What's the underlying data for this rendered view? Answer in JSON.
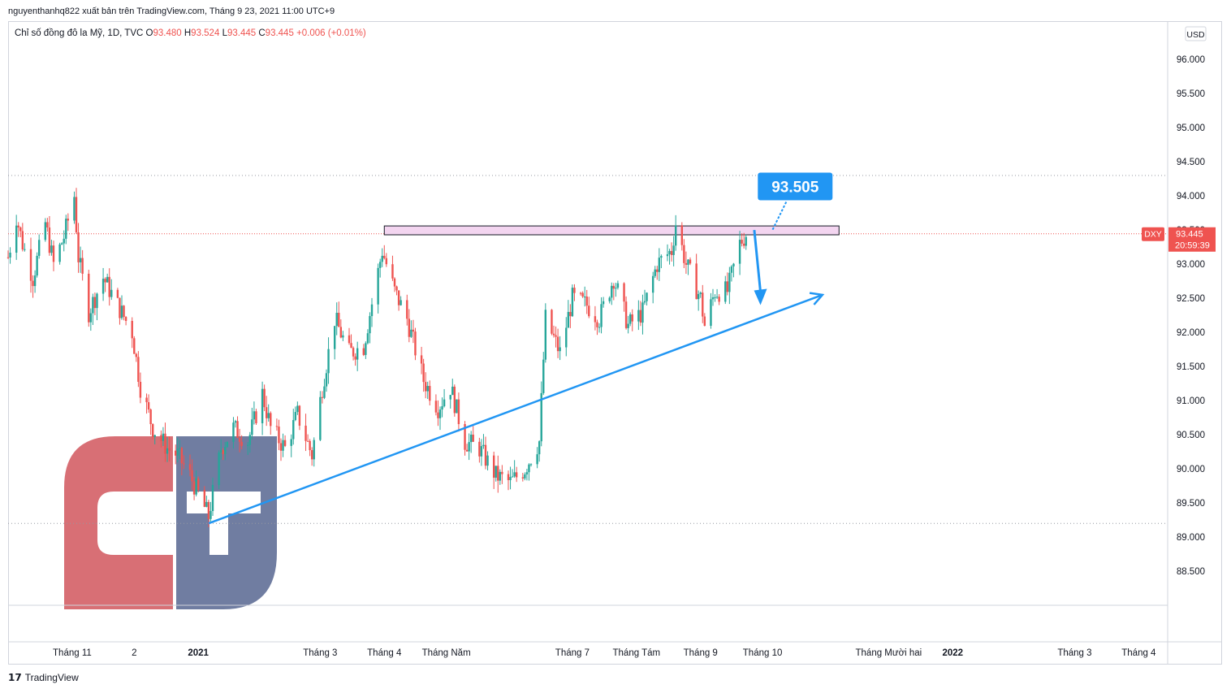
{
  "header": {
    "publisher_line": "nguyenthanhq822 xuất bản trên TradingView.com, Tháng 9 23, 2021 11:00 UTC+9"
  },
  "legend": {
    "instrument": "Chỉ số đồng đô la Mỹ, 1D, TVC",
    "open_label": "O",
    "open": "93.480",
    "high_label": "H",
    "high": "93.524",
    "low_label": "L",
    "low": "93.445",
    "close_label": "C",
    "close": "93.445",
    "change": "+0.006 (+0.01%)"
  },
  "price_axis": {
    "currency_badge": "USD",
    "symbol_badge": "DXY",
    "last_price": "93.445",
    "countdown": "20:59:39"
  },
  "callout": {
    "value": "93.505"
  },
  "footer": {
    "brand": "TradingView"
  },
  "colors": {
    "up": "#26a69a",
    "down": "#ef5350",
    "trendline": "#2196f3",
    "zone_fill": "#f3d5f0",
    "logo_red": "#d5646b",
    "logo_blue": "#65739a"
  },
  "chart_data": {
    "type": "candlestick",
    "symbol": "DXY",
    "timeframe": "1D",
    "ylim": [
      88.0,
      96.55
    ],
    "y_ticks": [
      88.5,
      89.0,
      89.5,
      90.0,
      90.5,
      91.0,
      91.5,
      92.0,
      92.5,
      93.0,
      93.5,
      94.0,
      94.5,
      95.0,
      95.5,
      96.0
    ],
    "y_tick_labels": [
      "88.500",
      "89.000",
      "89.500",
      "90.000",
      "90.500",
      "91.000",
      "91.500",
      "92.000",
      "92.500",
      "93.000",
      "93.500",
      "94.000",
      "94.500",
      "95.000",
      "95.500",
      "96.000"
    ],
    "x_labels": [
      {
        "date": "2020-11-01",
        "text": "Tháng 11",
        "bold": false
      },
      {
        "date": "2020-12-01",
        "text": "2",
        "bold": false
      },
      {
        "date": "2021-01-01",
        "text": "2021",
        "bold": true
      },
      {
        "date": "2021-03-01",
        "text": "Tháng 3",
        "bold": false
      },
      {
        "date": "2021-04-01",
        "text": "Tháng 4",
        "bold": false
      },
      {
        "date": "2021-05-01",
        "text": "Tháng Năm",
        "bold": false
      },
      {
        "date": "2021-07-01",
        "text": "Tháng 7",
        "bold": false
      },
      {
        "date": "2021-08-01",
        "text": "Tháng Tám",
        "bold": false
      },
      {
        "date": "2021-09-01",
        "text": "Tháng 9",
        "bold": false
      },
      {
        "date": "2021-10-01",
        "text": "Tháng 10",
        "bold": false
      },
      {
        "date": "2021-12-01",
        "text": "Tháng Mười hai",
        "bold": false
      },
      {
        "date": "2022-01-01",
        "text": "2022",
        "bold": true
      },
      {
        "date": "2022-03-01",
        "text": "Tháng 3",
        "bold": false
      },
      {
        "date": "2022-04-01",
        "text": "Tháng 4",
        "bold": false
      }
    ],
    "x_range": [
      "2020-10-01",
      "2022-04-15"
    ],
    "close_path": [
      [
        "2020-10-01",
        93.1
      ],
      [
        "2020-10-05",
        93.7
      ],
      [
        "2020-10-08",
        93.3
      ],
      [
        "2020-10-13",
        92.8
      ],
      [
        "2020-10-19",
        93.6
      ],
      [
        "2020-10-23",
        93.0
      ],
      [
        "2020-10-28",
        93.4
      ],
      [
        "2020-11-02",
        94.0
      ],
      [
        "2020-11-04",
        93.1
      ],
      [
        "2020-11-09",
        92.3
      ],
      [
        "2020-11-16",
        92.8
      ],
      [
        "2020-11-23",
        92.4
      ],
      [
        "2020-11-30",
        92.0
      ],
      [
        "2020-12-04",
        91.2
      ],
      [
        "2020-12-10",
        90.6
      ],
      [
        "2020-12-17",
        90.3
      ],
      [
        "2020-12-22",
        90.2
      ],
      [
        "2020-12-28",
        89.9
      ],
      [
        "2021-01-06",
        89.3
      ],
      [
        "2021-01-12",
        90.3
      ],
      [
        "2021-01-18",
        90.6
      ],
      [
        "2021-01-25",
        90.4
      ],
      [
        "2021-02-01",
        91.1
      ],
      [
        "2021-02-05",
        90.6
      ],
      [
        "2021-02-12",
        90.3
      ],
      [
        "2021-02-18",
        90.8
      ],
      [
        "2021-02-25",
        90.2
      ],
      [
        "2021-03-02",
        91.2
      ],
      [
        "2021-03-08",
        92.2
      ],
      [
        "2021-03-15",
        91.7
      ],
      [
        "2021-03-22",
        91.8
      ],
      [
        "2021-03-31",
        93.2
      ],
      [
        "2021-04-06",
        92.6
      ],
      [
        "2021-04-12",
        92.2
      ],
      [
        "2021-04-20",
        91.3
      ],
      [
        "2021-04-27",
        90.9
      ],
      [
        "2021-05-03",
        91.2
      ],
      [
        "2021-05-10",
        90.4
      ],
      [
        "2021-05-17",
        90.3
      ],
      [
        "2021-05-25",
        89.9
      ],
      [
        "2021-06-01",
        89.8
      ],
      [
        "2021-06-08",
        90.0
      ],
      [
        "2021-06-15",
        90.4
      ],
      [
        "2021-06-18",
        92.2
      ],
      [
        "2021-06-25",
        91.7
      ],
      [
        "2021-07-01",
        92.5
      ],
      [
        "2021-07-08",
        92.4
      ],
      [
        "2021-07-14",
        92.2
      ],
      [
        "2021-07-21",
        92.8
      ],
      [
        "2021-07-28",
        92.1
      ],
      [
        "2021-08-04",
        92.3
      ],
      [
        "2021-08-11",
        93.0
      ],
      [
        "2021-08-18",
        93.2
      ],
      [
        "2021-08-20",
        93.6
      ],
      [
        "2021-08-25",
        93.0
      ],
      [
        "2021-09-01",
        92.5
      ],
      [
        "2021-09-03",
        92.1
      ],
      [
        "2021-09-08",
        92.6
      ],
      [
        "2021-09-14",
        92.6
      ],
      [
        "2021-09-20",
        93.3
      ],
      [
        "2021-09-23",
        93.445
      ]
    ],
    "horizontal_lines": [
      94.3,
      89.2,
      93.445
    ],
    "resistance_zone": {
      "from": "2021-04-01",
      "to": "2021-11-07",
      "y_low": 93.43,
      "y_high": 93.56
    },
    "trendline": {
      "from": [
        "2021-01-06",
        89.2
      ],
      "to": [
        "2021-10-30",
        92.55
      ]
    },
    "forecast_arrow": {
      "from": [
        "2021-09-27",
        93.5
      ],
      "to": [
        "2021-09-30",
        92.4
      ]
    }
  }
}
